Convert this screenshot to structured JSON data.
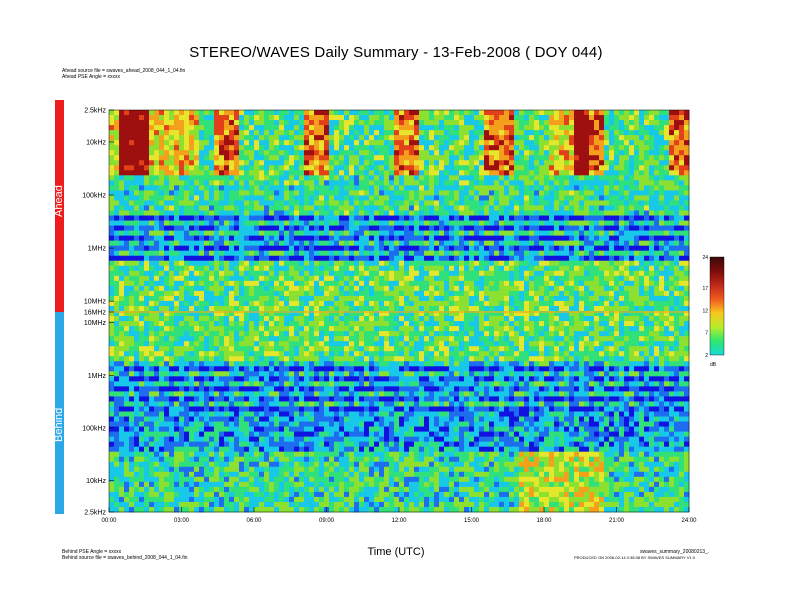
{
  "header": {
    "title": "STEREO/WAVES Daily Summary - 13-Feb-2008 ( DOY 044)",
    "ahead_source_file": "Ahead source file = swaves_ahead_2008_044_1_04.fin",
    "ahead_pse_angle": "Ahead PSE Angle = xxxxx"
  },
  "footer": {
    "behind_pse_angle": "Behind PSE Angle = xxxxx",
    "behind_source_file": "Behind source file = swaves_behind_2008_044_1_04.fin",
    "summary_file": "swaves_summary_20080213_.",
    "produced_note": "PRODUCED ON 2008-02-14 0:38:08 BY SWAVES SUMMARY V1.0"
  },
  "panels": {
    "ahead_label": "Ahead",
    "behind_label": "Behind",
    "ahead_color": "#ee1c1c",
    "behind_color": "#2aa7e6"
  },
  "chart_data": {
    "type": "heatmap",
    "title": "STEREO/WAVES Daily Summary - 13-Feb-2008 ( DOY 044)",
    "xlabel": "Time (UTC)",
    "x_ticks": [
      "00:00",
      "03:00",
      "06:00",
      "09:00",
      "12:00",
      "15:00",
      "18:00",
      "21:00",
      "24:00"
    ],
    "xlim": [
      "00:00",
      "24:00"
    ],
    "ahead_frequency_ticks": [
      "2.5kHz",
      "10kHz",
      "100kHz",
      "1MHz",
      "10MHz",
      "16MHz"
    ],
    "behind_frequency_ticks": [
      "10MHz",
      "1MHz",
      "100kHz",
      "10kHz",
      "2.5kHz"
    ],
    "ahead_ylim": [
      "16MHz",
      "2.5kHz"
    ],
    "behind_ylim": [
      "2.5kHz",
      "16MHz"
    ],
    "y_scale": "log",
    "colorbar": {
      "ticks": [
        24,
        17,
        12,
        7,
        2
      ],
      "unit": "dB",
      "range": [
        2,
        24
      ],
      "colors": [
        "#3a0a0a",
        "#7a0c0c",
        "#c0281a",
        "#ef5a1e",
        "#f8c71e",
        "#b8ec2a",
        "#2ee86e",
        "#18d8d8"
      ]
    },
    "palette": [
      "#1212e0",
      "#1e6cf0",
      "#18c8e8",
      "#30e07a",
      "#8ce030",
      "#e6e62c",
      "#f5a01c",
      "#e2401a",
      "#9e1010"
    ]
  }
}
